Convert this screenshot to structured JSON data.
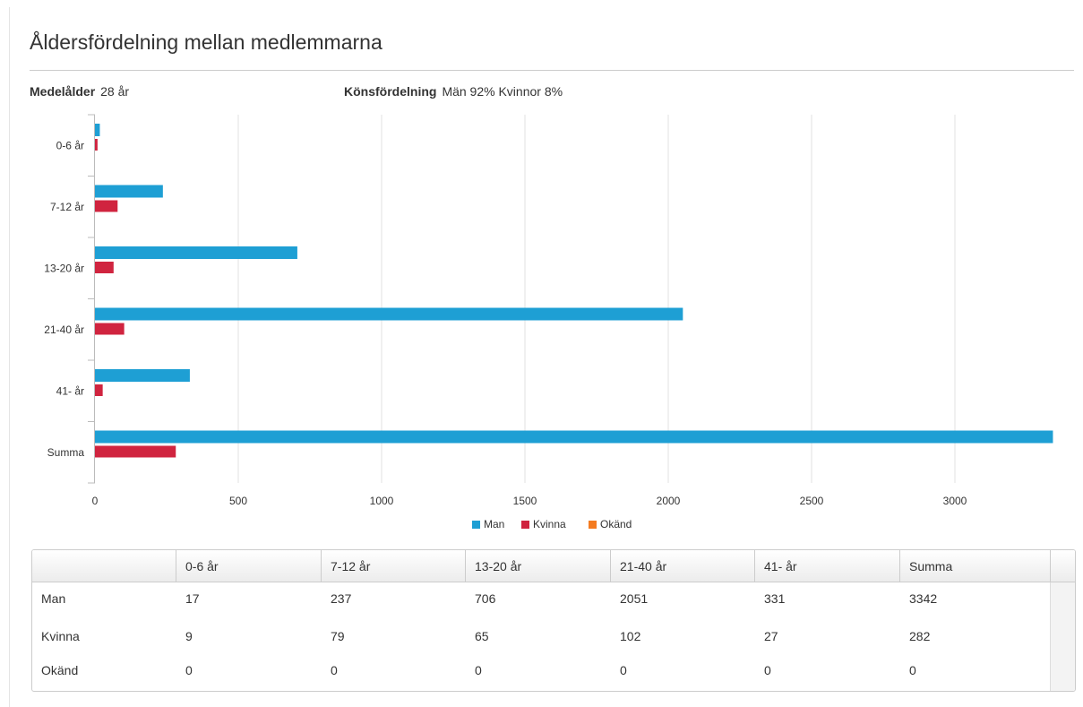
{
  "title": "Åldersfördelning mellan medlemmarna",
  "stats": [
    {
      "label": "Medelålder",
      "value": "28 år"
    },
    {
      "label": "Könsfördelning",
      "value": "Män 92% Kvinnor 8%"
    }
  ],
  "chart_data": {
    "type": "hbar",
    "categories": [
      "0-6 år",
      "7-12 år",
      "13-20 år",
      "21-40 år",
      "41- år",
      "Summa"
    ],
    "series": [
      {
        "name": "Man",
        "color": "#1e9fd4",
        "values": [
          17,
          237,
          706,
          2051,
          331,
          3342
        ]
      },
      {
        "name": "Kvinna",
        "color": "#d0243f",
        "values": [
          9,
          79,
          65,
          102,
          27,
          282
        ]
      },
      {
        "name": "Okänd",
        "color": "#f47b20",
        "values": [
          0,
          0,
          0,
          0,
          0,
          0
        ]
      }
    ],
    "xlim": [
      0,
      3350
    ],
    "xticks": [
      0,
      500,
      1000,
      1500,
      2000,
      2500,
      3000
    ],
    "grid": true,
    "legend": "bottom"
  }
}
